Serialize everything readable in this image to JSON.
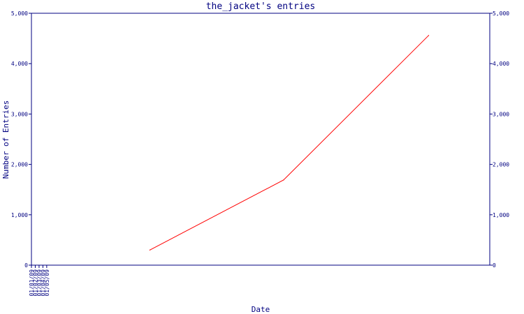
{
  "chart_data": {
    "type": "line",
    "title": "the_jacket's entries",
    "xlabel": "Date",
    "ylabel": "Number of Entries",
    "x_ticks": [
      "01/01/09",
      "01/02/09",
      "01/03/09",
      "01/04/09",
      "01/05/09"
    ],
    "y_ticks": [
      "0",
      "1,000",
      "2,000",
      "3,000",
      "4,000",
      "5,000"
    ],
    "ylim": [
      0,
      5000
    ],
    "xlim": [
      "2009-01-01",
      "2009-05-01"
    ],
    "series": [
      {
        "color": "#ff0000",
        "points": [
          {
            "x": "2009-02-01",
            "y": 300
          },
          {
            "x": "2009-03-08",
            "y": 1690
          },
          {
            "x": "2009-04-15",
            "y": 4560
          }
        ]
      }
    ],
    "axis_color": "#000080",
    "grid": false,
    "right_axis": true
  }
}
